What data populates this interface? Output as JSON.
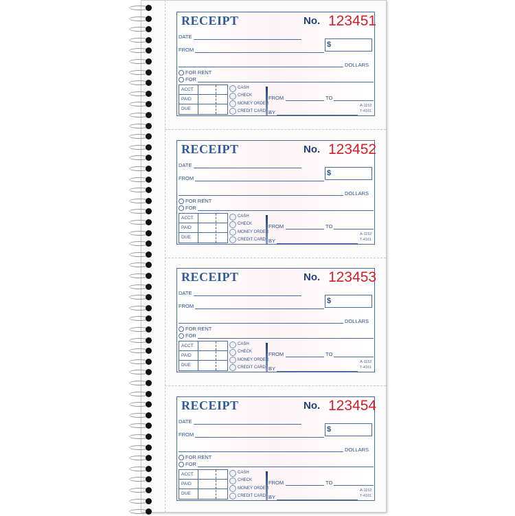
{
  "receipt_labels": {
    "title": "RECEIPT",
    "no": "No.",
    "date": "DATE",
    "from": "FROM",
    "dollar_sign": "$",
    "dollars": "DOLLARS",
    "for_rent": "FOR RENT",
    "for": "FOR",
    "acct": "ACCT.",
    "paid": "PAID",
    "due": "DUE",
    "cash": "CASH",
    "check": "CHECK",
    "money_order": "MONEY ORDER",
    "credit_card": "CREDIT CARD",
    "period_from": "FROM",
    "period_to": "TO",
    "by": "BY",
    "code1": "A-1152",
    "code2": "T-4161"
  },
  "receipts": [
    {
      "number": "123451"
    },
    {
      "number": "123452"
    },
    {
      "number": "123453"
    },
    {
      "number": "123454"
    }
  ],
  "colors": {
    "form_blue": "#2d4f8a",
    "number_red": "#d22027"
  }
}
